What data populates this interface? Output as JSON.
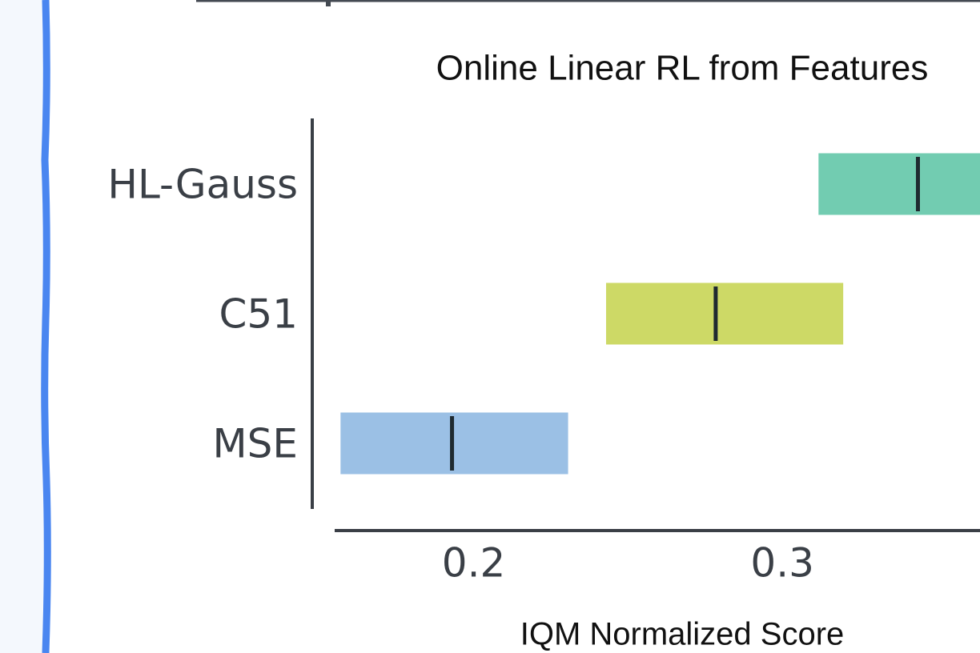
{
  "chart_data": {
    "type": "interval",
    "title": "Online Linear RL from Features",
    "xlabel": "IQM Normalized Score",
    "categories": [
      "HL-Gauss",
      "C51",
      "MSE"
    ],
    "low": [
      0.3117,
      0.2429,
      0.1569
    ],
    "median": [
      0.3439,
      0.2784,
      0.193
    ],
    "high": [
      0.375,
      0.3197,
      0.2306
    ],
    "colors": [
      "#72ccb1",
      "#cdd966",
      "#9bc0e5"
    ],
    "xlim": [
      0.155,
      0.364
    ],
    "xticks": [
      0.2,
      0.3
    ]
  }
}
